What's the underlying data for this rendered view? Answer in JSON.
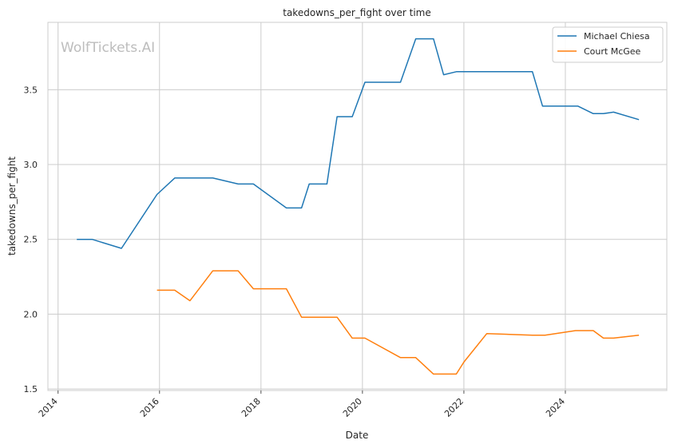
{
  "chart_data": {
    "type": "line",
    "title": "takedowns_per_fight over time",
    "xlabel": "Date",
    "ylabel": "takedowns_per_fight",
    "watermark": "WolfTickets.AI",
    "xlim": [
      2013.8,
      2026.0
    ],
    "ylim": [
      1.49,
      3.95
    ],
    "xticks": [
      2014,
      2016,
      2018,
      2020,
      2022,
      2024
    ],
    "xtick_labels": [
      "2014",
      "2016",
      "2018",
      "2020",
      "2022",
      "2024"
    ],
    "yticks": [
      1.5,
      2.0,
      2.5,
      3.0,
      3.5
    ],
    "ytick_labels": [
      "1.5",
      "2.0",
      "2.5",
      "3.0",
      "3.5"
    ],
    "grid": true,
    "legend_position": "top-right",
    "series": [
      {
        "name": "Michael Chiesa",
        "color": "#1f77b4",
        "points": [
          [
            2014.37,
            2.5
          ],
          [
            2014.67,
            2.5
          ],
          [
            2015.25,
            2.44
          ],
          [
            2015.95,
            2.8
          ],
          [
            2016.3,
            2.91
          ],
          [
            2017.05,
            2.91
          ],
          [
            2017.55,
            2.87
          ],
          [
            2017.85,
            2.87
          ],
          [
            2018.5,
            2.71
          ],
          [
            2018.8,
            2.71
          ],
          [
            2018.95,
            2.87
          ],
          [
            2019.3,
            2.87
          ],
          [
            2019.5,
            3.32
          ],
          [
            2019.8,
            3.32
          ],
          [
            2020.05,
            3.55
          ],
          [
            2020.75,
            3.55
          ],
          [
            2021.05,
            3.84
          ],
          [
            2021.4,
            3.84
          ],
          [
            2021.6,
            3.6
          ],
          [
            2021.85,
            3.62
          ],
          [
            2023.35,
            3.62
          ],
          [
            2023.55,
            3.39
          ],
          [
            2024.25,
            3.39
          ],
          [
            2024.55,
            3.34
          ],
          [
            2024.75,
            3.34
          ],
          [
            2024.95,
            3.35
          ],
          [
            2025.45,
            3.3
          ]
        ]
      },
      {
        "name": "Court McGee",
        "color": "#ff7f0e",
        "points": [
          [
            2015.95,
            2.16
          ],
          [
            2016.3,
            2.16
          ],
          [
            2016.6,
            2.09
          ],
          [
            2017.05,
            2.29
          ],
          [
            2017.55,
            2.29
          ],
          [
            2017.85,
            2.17
          ],
          [
            2018.5,
            2.17
          ],
          [
            2018.8,
            1.98
          ],
          [
            2019.5,
            1.98
          ],
          [
            2019.8,
            1.84
          ],
          [
            2020.05,
            1.84
          ],
          [
            2020.75,
            1.71
          ],
          [
            2021.05,
            1.71
          ],
          [
            2021.4,
            1.6
          ],
          [
            2021.85,
            1.6
          ],
          [
            2022.0,
            1.68
          ],
          [
            2022.45,
            1.87
          ],
          [
            2023.35,
            1.86
          ],
          [
            2023.6,
            1.86
          ],
          [
            2024.2,
            1.89
          ],
          [
            2024.55,
            1.89
          ],
          [
            2024.75,
            1.84
          ],
          [
            2024.95,
            1.84
          ],
          [
            2025.45,
            1.86
          ]
        ]
      }
    ]
  }
}
